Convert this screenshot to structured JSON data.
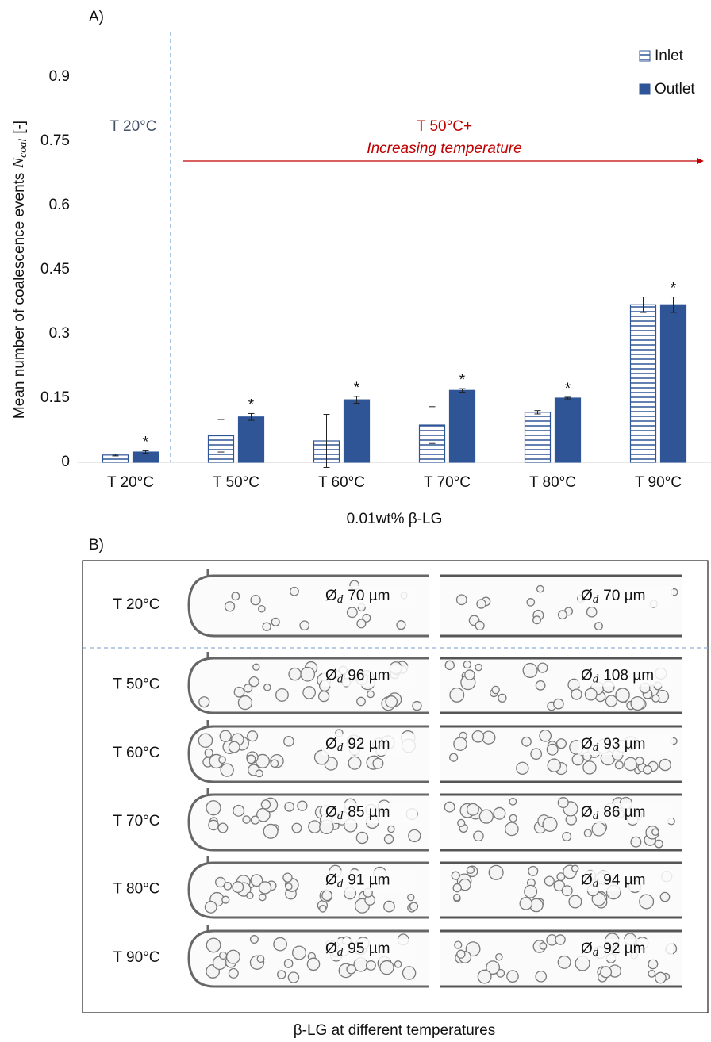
{
  "chart_data": {
    "type": "bar",
    "panel_label": "A)",
    "ylabel": "Mean number of coalescence events",
    "ylabel_symbol": "N",
    "ylabel_subscript": "coal",
    "ylabel_unit": "[-]",
    "xlabel": "0.01wt% β-LG",
    "categories": [
      "T 20°C",
      "T 50°C",
      "T 60°C",
      "T 70°C",
      "T 80°C",
      "T 90°C"
    ],
    "series": [
      {
        "name": "Inlet",
        "color": "#2f5597",
        "hatch": true,
        "values": [
          0.017,
          0.062,
          0.05,
          0.087,
          0.117,
          0.368
        ],
        "errors": [
          0.002,
          0.038,
          0.062,
          0.043,
          0.004,
          0.018
        ]
      },
      {
        "name": "Outlet",
        "color": "#2f5597",
        "hatch": false,
        "values": [
          0.024,
          0.106,
          0.146,
          0.168,
          0.15,
          0.368
        ],
        "errors": [
          0.003,
          0.008,
          0.008,
          0.004,
          0.002,
          0.018
        ]
      }
    ],
    "significance": [
      "*",
      "*",
      "*",
      "*",
      "*",
      "*"
    ],
    "ylim": [
      0,
      1.0
    ],
    "yticks": [
      0,
      0.15,
      0.3,
      0.45,
      0.6,
      0.75,
      0.9
    ],
    "grid": false,
    "legend": "top-right",
    "divider_text": "T 20°C",
    "region_text": "T 50°C+",
    "region_subtext": "Increasing temperature"
  },
  "panel_b": {
    "label": "B)",
    "symbol": "Ø",
    "subscript": "d",
    "rows": [
      {
        "label": "T 20°C",
        "inlet": "70 µm",
        "outlet": "70 µm"
      },
      {
        "label": "T 50°C",
        "inlet": "96 µm",
        "outlet": "108 µm"
      },
      {
        "label": "T 60°C",
        "inlet": "92 µm",
        "outlet": "93 µm"
      },
      {
        "label": "T 70°C",
        "inlet": "85 µm",
        "outlet": "86 µm"
      },
      {
        "label": "T 80°C",
        "inlet": "91 µm",
        "outlet": "94 µm"
      },
      {
        "label": "T 90°C",
        "inlet": "95 µm",
        "outlet": "92 µm"
      }
    ],
    "caption": "β-LG  at different temperatures"
  }
}
